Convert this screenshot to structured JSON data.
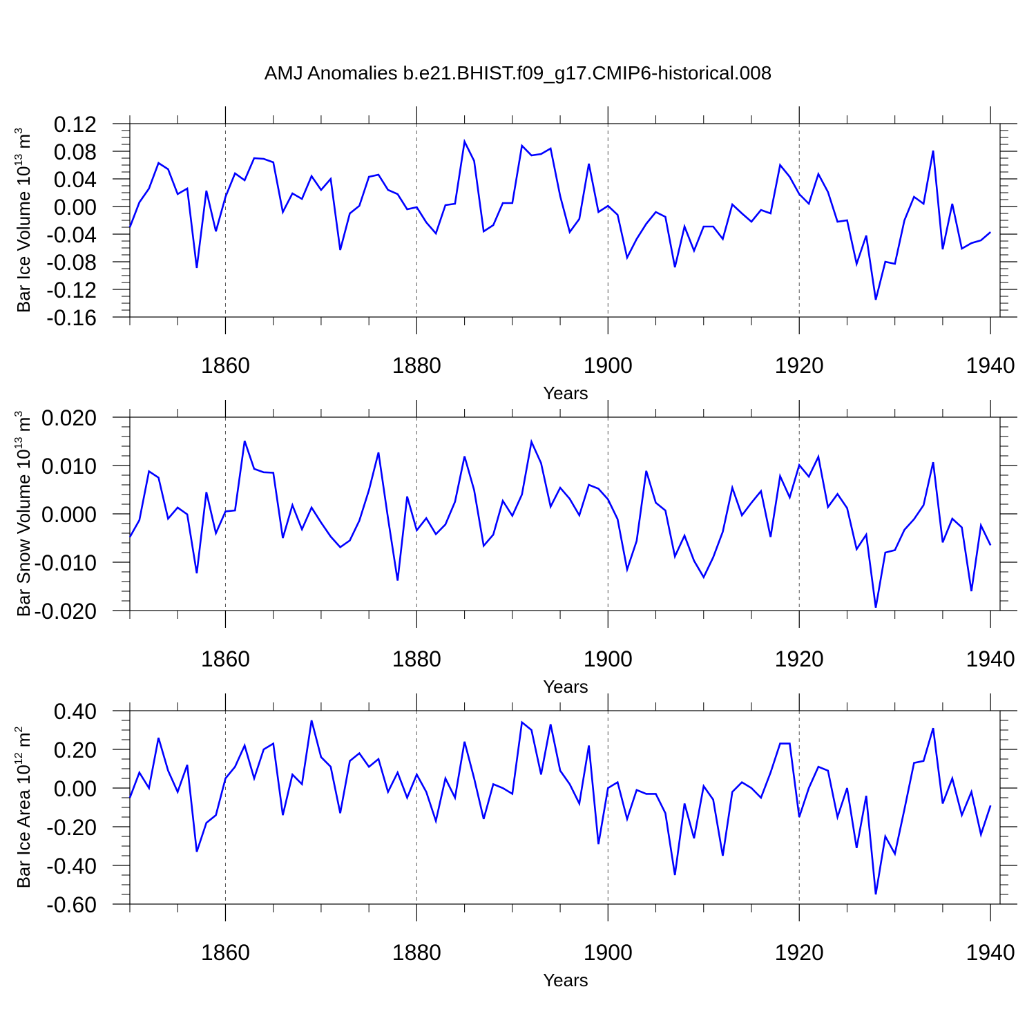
{
  "figure": {
    "title": "AMJ Anomalies b.e21.BHIST.f09_g17.CMIP6-historical.008",
    "background": "#ffffff",
    "line_color": "#0000ff",
    "axis_color": "#000000",
    "grid_color": "#555555"
  },
  "chart_data": [
    {
      "type": "line",
      "title": "",
      "xlabel": "Years",
      "ylabel": "Bar Ice Volume 10",
      "ylabel_exp": "13",
      "ylabel_unit": " m",
      "ylabel_unit_exp": "3",
      "xlim": [
        1850,
        1941
      ],
      "ylim": [
        -0.16,
        0.12
      ],
      "x_ticks": [
        1860,
        1880,
        1900,
        1920,
        1940
      ],
      "y_ticks": [
        0.12,
        0.08,
        0.04,
        0.0,
        -0.04,
        -0.08,
        -0.12,
        -0.16
      ],
      "y_tick_labels": [
        "0.12",
        "0.08",
        "0.04",
        "0.00",
        "-0.04",
        "-0.08",
        "-0.12",
        "-0.16"
      ],
      "y_minor_step": 0.01,
      "x_minor_step": 5,
      "vertical_gridlines": [
        1860,
        1880,
        1900,
        1920
      ],
      "x_start": 1850,
      "values": [
        -0.03,
        0.006,
        0.026,
        0.063,
        0.054,
        0.018,
        0.026,
        -0.089,
        0.023,
        -0.036,
        0.014,
        0.048,
        0.038,
        0.07,
        0.069,
        0.064,
        -0.008,
        0.019,
        0.011,
        0.044,
        0.024,
        0.04,
        -0.063,
        -0.01,
        0.001,
        0.043,
        0.046,
        0.024,
        0.018,
        -0.004,
        -0.001,
        -0.023,
        -0.039,
        0.002,
        0.004,
        0.094,
        0.066,
        -0.036,
        -0.027,
        0.005,
        0.005,
        0.088,
        0.074,
        0.076,
        0.084,
        0.015,
        -0.037,
        -0.018,
        0.062,
        -0.008,
        0.001,
        -0.012,
        -0.074,
        -0.047,
        -0.025,
        -0.008,
        -0.015,
        -0.088,
        -0.029,
        -0.064,
        -0.029,
        -0.029,
        -0.047,
        0.003,
        -0.01,
        -0.022,
        -0.005,
        -0.01,
        0.06,
        0.043,
        0.018,
        0.004,
        0.047,
        0.021,
        -0.022,
        -0.02,
        -0.083,
        -0.042,
        -0.135,
        -0.08,
        -0.083,
        -0.02,
        0.014,
        0.004,
        0.081,
        -0.062,
        0.004,
        -0.061,
        -0.053,
        -0.049,
        -0.037
      ]
    },
    {
      "type": "line",
      "title": "",
      "xlabel": "Years",
      "ylabel": "Bar Snow Volume 10",
      "ylabel_exp": "13",
      "ylabel_unit": " m",
      "ylabel_unit_exp": "3",
      "xlim": [
        1850,
        1941
      ],
      "ylim": [
        -0.02,
        0.02
      ],
      "x_ticks": [
        1860,
        1880,
        1900,
        1920,
        1940
      ],
      "y_ticks": [
        0.02,
        0.01,
        0.0,
        -0.01,
        -0.02
      ],
      "y_tick_labels": [
        "0.020",
        "0.010",
        "0.000",
        "-0.010",
        "-0.020"
      ],
      "y_minor_step": 0.002,
      "x_minor_step": 5,
      "vertical_gridlines": [
        1860,
        1880,
        1900,
        1920
      ],
      "x_start": 1850,
      "values": [
        -0.0048,
        -0.0013,
        0.0088,
        0.0075,
        -0.001,
        0.0013,
        -0.0001,
        -0.0123,
        0.0045,
        -0.004,
        0.0005,
        0.0007,
        0.0151,
        0.0093,
        0.0086,
        0.0085,
        -0.005,
        0.0018,
        -0.0032,
        0.0013,
        -0.0018,
        -0.0047,
        -0.0069,
        -0.0055,
        -0.0014,
        0.0049,
        0.0127,
        -0.0009,
        -0.0138,
        0.0036,
        -0.0034,
        -0.0009,
        -0.0042,
        -0.0022,
        0.0025,
        0.0119,
        0.0049,
        -0.0066,
        -0.0043,
        0.0027,
        -0.0004,
        0.004,
        0.0149,
        0.0105,
        0.0015,
        0.0054,
        0.0031,
        -0.0003,
        0.006,
        0.0052,
        0.003,
        -0.0011,
        -0.0115,
        -0.0056,
        0.0089,
        0.0023,
        0.0007,
        -0.0088,
        -0.0045,
        -0.0097,
        -0.0131,
        -0.009,
        -0.0037,
        0.0054,
        -0.0003,
        0.0023,
        0.0047,
        -0.0048,
        0.0078,
        0.0034,
        0.0101,
        0.0077,
        0.0118,
        0.0014,
        0.0041,
        0.0012,
        -0.0073,
        -0.0043,
        -0.0194,
        -0.008,
        -0.0075,
        -0.0033,
        -0.0011,
        0.0018,
        0.0107,
        -0.0059,
        -0.001,
        -0.0028,
        -0.016,
        -0.0024,
        -0.0065
      ]
    },
    {
      "type": "line",
      "title": "",
      "xlabel": "Years",
      "ylabel": "Bar Ice Area 10",
      "ylabel_exp": "12",
      "ylabel_unit": " m",
      "ylabel_unit_exp": "2",
      "xlim": [
        1850,
        1941
      ],
      "ylim": [
        -0.6,
        0.4
      ],
      "x_ticks": [
        1860,
        1880,
        1900,
        1920,
        1940
      ],
      "y_ticks": [
        0.4,
        0.2,
        0.0,
        -0.2,
        -0.4,
        -0.6
      ],
      "y_tick_labels": [
        "0.40",
        "0.20",
        "0.00",
        "-0.20",
        "-0.40",
        "-0.60"
      ],
      "y_minor_step": 0.05,
      "x_minor_step": 5,
      "vertical_gridlines": [
        1860,
        1880,
        1900,
        1920
      ],
      "x_start": 1850,
      "values": [
        -0.05,
        0.08,
        0.0,
        0.26,
        0.09,
        -0.02,
        0.12,
        -0.33,
        -0.18,
        -0.14,
        0.05,
        0.11,
        0.22,
        0.05,
        0.2,
        0.23,
        -0.14,
        0.07,
        0.02,
        0.35,
        0.16,
        0.11,
        -0.13,
        0.14,
        0.18,
        0.11,
        0.15,
        -0.02,
        0.08,
        -0.05,
        0.07,
        -0.02,
        -0.17,
        0.05,
        -0.05,
        0.24,
        0.05,
        -0.16,
        0.02,
        0.0,
        -0.03,
        0.34,
        0.3,
        0.07,
        0.33,
        0.09,
        0.02,
        -0.08,
        0.22,
        -0.29,
        0.0,
        0.03,
        -0.16,
        -0.01,
        -0.03,
        -0.03,
        -0.13,
        -0.45,
        -0.08,
        -0.26,
        0.01,
        -0.06,
        -0.35,
        -0.02,
        0.03,
        0.0,
        -0.05,
        0.08,
        0.23,
        0.23,
        -0.15,
        0.0,
        0.11,
        0.09,
        -0.15,
        0.0,
        -0.31,
        -0.04,
        -0.55,
        -0.25,
        -0.34,
        -0.11,
        0.13,
        0.14,
        0.31,
        -0.08,
        0.05,
        -0.14,
        -0.02,
        -0.24,
        -0.09
      ]
    }
  ]
}
